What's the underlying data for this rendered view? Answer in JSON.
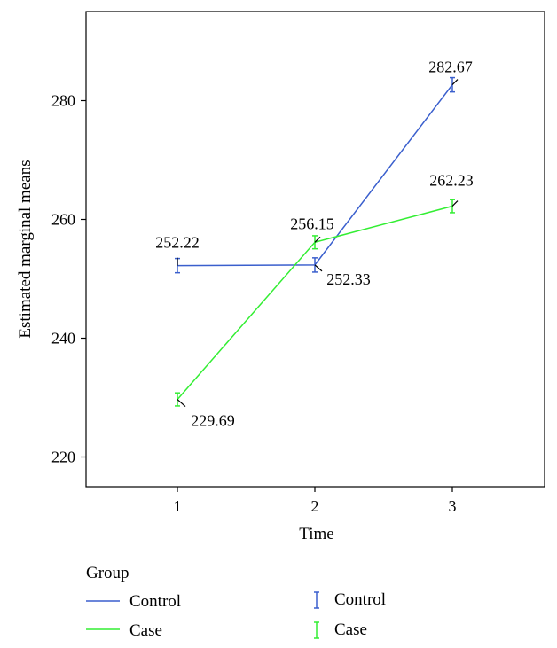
{
  "chart_data": {
    "type": "line",
    "title": "",
    "xlabel": "Time",
    "ylabel": "Estimated marginal means",
    "x": [
      1,
      2,
      3
    ],
    "ylim": [
      215,
      295
    ],
    "yticks": [
      220,
      240,
      260,
      280
    ],
    "xticks": [
      1,
      2,
      3
    ],
    "grid": false,
    "legend_placement": "bottom",
    "legend_title": "Group",
    "series": [
      {
        "name": "Control",
        "color": "#3a5fcd",
        "values": [
          252.22,
          252.33,
          282.67
        ],
        "error": [
          1.2,
          1.2,
          1.2
        ],
        "labels": [
          "252.22",
          "252.33",
          "282.67"
        ]
      },
      {
        "name": "Case",
        "color": "#33ee33",
        "values": [
          229.69,
          256.15,
          262.23
        ],
        "error": [
          1.1,
          1.1,
          1.1
        ],
        "labels": [
          "229.69",
          "256.15",
          "262.23"
        ]
      }
    ],
    "legend": {
      "title": "Group",
      "line_entries": [
        "Control",
        "Case"
      ],
      "errorbar_entries": [
        "Control",
        "Case"
      ]
    }
  }
}
